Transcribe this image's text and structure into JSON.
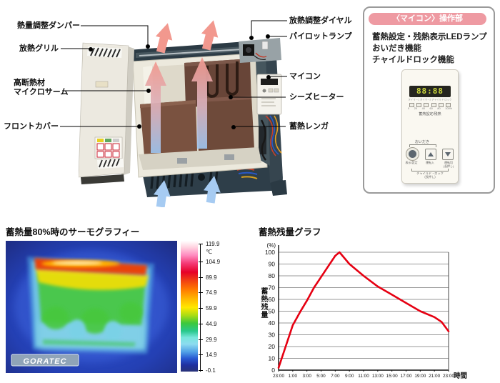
{
  "colors": {
    "accent_pink": "#ee9aa2",
    "chart_line_red": "#e60012",
    "hot_arrow_pink": "#f2988e",
    "cold_arrow_blue": "#a6cbf2"
  },
  "diagram": {
    "callouts": [
      {
        "label": "熱量調整ダンパー"
      },
      {
        "label": "放熱グリル"
      },
      {
        "label": "高断熱材\nマイクロサーム"
      },
      {
        "label": "フロントカバー"
      },
      {
        "label": "放熱調整ダイヤル"
      },
      {
        "label": "パイロットランプ"
      },
      {
        "label": "マイコン"
      },
      {
        "label": "シーズヒーター"
      },
      {
        "label": "蓄熱レンガ"
      }
    ]
  },
  "info_box": {
    "title": "〈マイコン〉操作部",
    "features": [
      "蓄熱設定・残熱表示LEDランプ",
      "おいだき機能",
      "チャイルドロック機能"
    ],
    "panel": {
      "display": "88:88",
      "display_sub": "タイマー1 タイマー2 チャイルド ロック",
      "led_scale": [
        "0",
        "20",
        "40",
        "60",
        "80",
        "100%"
      ],
      "led_label": "蓄熱設定/残熱",
      "oidaki_label": "おいだき",
      "buttons": [
        {
          "name": "display-set",
          "label": "表示/設定"
        },
        {
          "name": "run-on",
          "label": "運転入"
        },
        {
          "name": "run-off",
          "label": "運転切\n(長押し)"
        }
      ],
      "child_lock_label": "チャイルド・ロック\n(長押し)"
    }
  },
  "thermo": {
    "title": "蓄熱量80%時のサーモグラフィー",
    "logo": "GORATEC",
    "scale_unit": "℃",
    "scale_labels": [
      "119.9",
      "104.9",
      "89.9",
      "74.9",
      "59.9",
      "44.9",
      "29.9",
      "14.9",
      "-0.1"
    ]
  },
  "chart": {
    "title": "蓄熱残量グラフ"
  },
  "chart_data": {
    "type": "line",
    "title": "蓄熱残量グラフ",
    "ylabel": "蓄熱残量",
    "xlabel": "時間",
    "y_unit": "(%)",
    "ylim": [
      0,
      100
    ],
    "ytick_step": 10,
    "grid": true,
    "x_ticks": [
      "23:00",
      "1:00",
      "3:00",
      "5:00",
      "7:00",
      "9:00",
      "11:00",
      "13:00",
      "15:00",
      "17:00",
      "19:00",
      "21:00",
      "23:00"
    ],
    "x_hours_span": 24,
    "series": [
      {
        "name": "蓄熱残量",
        "color": "#e60012",
        "points": [
          [
            0,
            2
          ],
          [
            1,
            20
          ],
          [
            2,
            38
          ],
          [
            3,
            49
          ],
          [
            4,
            59
          ],
          [
            5,
            70
          ],
          [
            6,
            79
          ],
          [
            7,
            88
          ],
          [
            8,
            97
          ],
          [
            8.6,
            100
          ],
          [
            10,
            90
          ],
          [
            12,
            80
          ],
          [
            14,
            71
          ],
          [
            16,
            64
          ],
          [
            18,
            57
          ],
          [
            20,
            50
          ],
          [
            22,
            45
          ],
          [
            23,
            41
          ],
          [
            24,
            33
          ]
        ]
      }
    ]
  }
}
